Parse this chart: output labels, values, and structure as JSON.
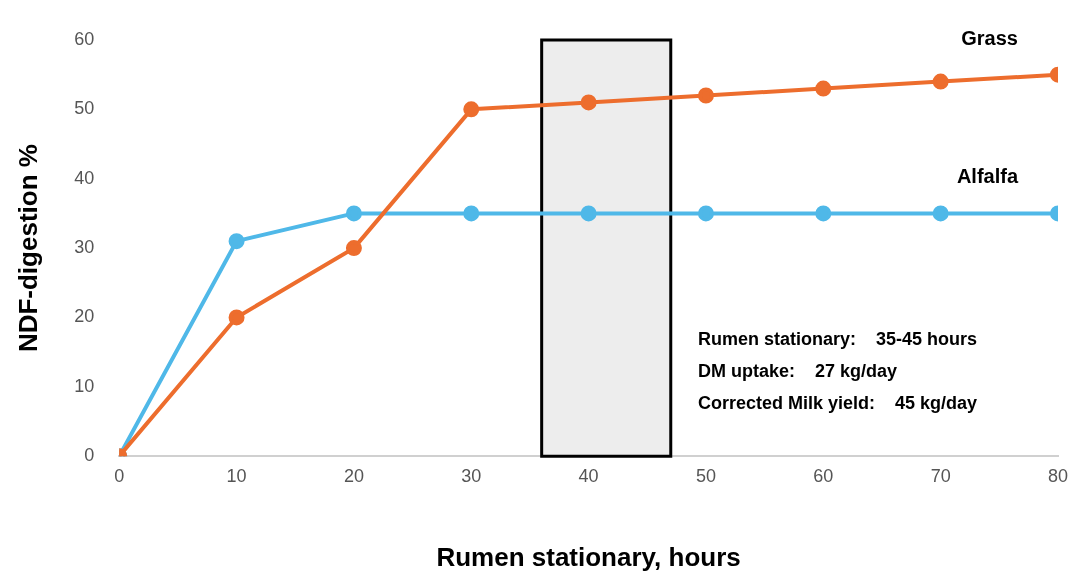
{
  "chart_data": {
    "type": "line",
    "xlabel": "Rumen stationary, hours",
    "ylabel": "NDF-digestion %",
    "x": [
      0,
      10,
      20,
      30,
      40,
      50,
      60,
      70,
      80
    ],
    "series": [
      {
        "name": "Grass",
        "color": "#ed6d2d",
        "values": [
          0,
          20,
          30,
          50,
          51,
          52,
          53,
          54,
          55
        ]
      },
      {
        "name": "Alfalfa",
        "color": "#4fb8e8",
        "values": [
          0,
          31,
          35,
          35,
          35,
          35,
          35,
          35,
          35
        ]
      }
    ],
    "xlim": [
      0,
      80
    ],
    "xticks": [
      0,
      10,
      20,
      30,
      40,
      50,
      60,
      70,
      80
    ],
    "ylim": [
      0,
      60
    ],
    "yticks": [
      0,
      10,
      20,
      30,
      40,
      50,
      60
    ],
    "bands": [
      {
        "axis": "x",
        "from": 36,
        "to": 47,
        "color": "#000000"
      }
    ],
    "annotations": [
      "Rumen stationary:    35-45 hours",
      "DM uptake:    27 kg/day",
      "Corrected Milk yield:    45 kg/day"
    ],
    "grid": false,
    "legend": false,
    "marker": "circle",
    "line_style": "solid"
  }
}
